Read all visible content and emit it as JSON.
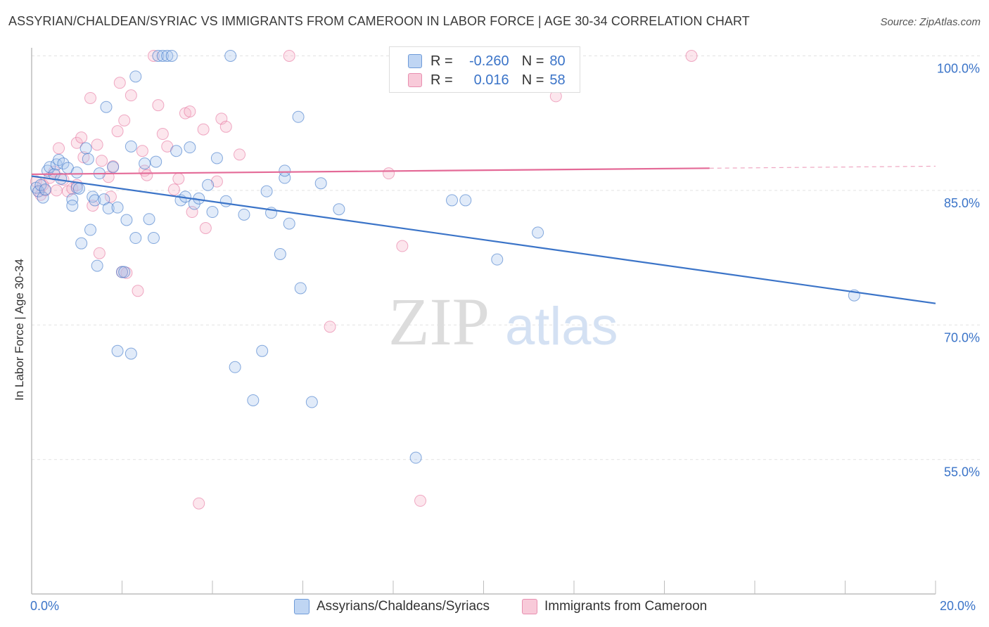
{
  "header": {
    "title": "ASSYRIAN/CHALDEAN/SYRIAC VS IMMIGRANTS FROM CAMEROON IN LABOR FORCE | AGE 30-34 CORRELATION CHART",
    "source": "Source: ZipAtlas.com"
  },
  "legend": {
    "r_label": "R =",
    "n_label": "N =",
    "rows": [
      {
        "r": "-0.260",
        "n": "80"
      },
      {
        "r": "0.016",
        "n": "58"
      }
    ]
  },
  "watermark": {
    "zip": "ZIP",
    "atlas": "atlas"
  },
  "chart_data": {
    "type": "scatter",
    "title": "ASSYRIAN/CHALDEAN/SYRIAC VS IMMIGRANTS FROM CAMEROON IN LABOR FORCE | AGE 30-34 CORRELATION CHART",
    "xlabel": "",
    "ylabel": "In Labor Force | Age 30-34",
    "xlim": [
      0,
      20
    ],
    "ylim": [
      40,
      101
    ],
    "x_tick_labels": [
      "0.0%",
      "20.0%"
    ],
    "y_ticks": [
      55,
      70,
      85,
      100
    ],
    "y_tick_labels": [
      "55.0%",
      "70.0%",
      "85.0%",
      "100.0%"
    ],
    "grid": true,
    "legend_position": "top-center",
    "colors": {
      "blue": "#3b74c8",
      "pink": "#e46a97",
      "blue_fill": "#a9c6ee",
      "pink_fill": "#f5b8cc"
    },
    "series": [
      {
        "name": "Assyrians/Chaldeans/Syriacs",
        "r": -0.26,
        "n": 80,
        "trend": {
          "x": [
            0,
            20
          ],
          "y": [
            86.6,
            72.4
          ]
        },
        "points": [
          [
            0.1,
            85.3
          ],
          [
            0.15,
            84.9
          ],
          [
            0.2,
            85.6
          ],
          [
            0.25,
            84.2
          ],
          [
            0.3,
            85.1
          ],
          [
            0.35,
            87.2
          ],
          [
            0.4,
            87.6
          ],
          [
            0.5,
            86.8
          ],
          [
            0.55,
            87.9
          ],
          [
            0.6,
            88.4
          ],
          [
            0.7,
            88.0
          ],
          [
            0.8,
            87.5
          ],
          [
            0.9,
            84.0
          ],
          [
            0.9,
            83.3
          ],
          [
            1.0,
            85.3
          ],
          [
            1.0,
            87.0
          ],
          [
            1.1,
            79.1
          ],
          [
            1.2,
            89.7
          ],
          [
            1.25,
            88.5
          ],
          [
            1.3,
            80.6
          ],
          [
            1.35,
            84.3
          ],
          [
            1.4,
            83.9
          ],
          [
            1.45,
            76.6
          ],
          [
            1.5,
            86.9
          ],
          [
            1.6,
            84.0
          ],
          [
            1.65,
            94.3
          ],
          [
            1.7,
            83.0
          ],
          [
            1.8,
            87.6
          ],
          [
            1.9,
            67.1
          ],
          [
            1.9,
            83.1
          ],
          [
            2.0,
            75.9
          ],
          [
            2.05,
            75.9
          ],
          [
            2.1,
            81.7
          ],
          [
            2.2,
            89.9
          ],
          [
            2.2,
            66.8
          ],
          [
            2.3,
            97.7
          ],
          [
            2.3,
            79.7
          ],
          [
            2.5,
            88.0
          ],
          [
            2.6,
            81.8
          ],
          [
            2.7,
            79.7
          ],
          [
            2.75,
            88.2
          ],
          [
            2.8,
            100.0
          ],
          [
            2.9,
            100.0
          ],
          [
            3.0,
            100.0
          ],
          [
            3.1,
            100.0
          ],
          [
            3.2,
            89.4
          ],
          [
            3.3,
            83.9
          ],
          [
            3.4,
            84.3
          ],
          [
            3.5,
            89.8
          ],
          [
            3.6,
            83.5
          ],
          [
            3.7,
            84.1
          ],
          [
            3.9,
            85.6
          ],
          [
            4.0,
            82.6
          ],
          [
            4.1,
            88.6
          ],
          [
            4.3,
            83.8
          ],
          [
            4.4,
            100.0
          ],
          [
            4.5,
            65.3
          ],
          [
            4.7,
            82.3
          ],
          [
            4.9,
            61.6
          ],
          [
            5.1,
            67.1
          ],
          [
            5.2,
            84.9
          ],
          [
            5.3,
            82.5
          ],
          [
            5.5,
            77.9
          ],
          [
            5.6,
            86.4
          ],
          [
            5.6,
            87.2
          ],
          [
            5.7,
            81.3
          ],
          [
            5.9,
            93.2
          ],
          [
            5.95,
            74.1
          ],
          [
            6.2,
            61.4
          ],
          [
            6.4,
            85.8
          ],
          [
            6.8,
            82.9
          ],
          [
            8.5,
            55.2
          ],
          [
            9.3,
            83.9
          ],
          [
            9.6,
            83.9
          ],
          [
            10.3,
            77.3
          ],
          [
            11.0,
            98.0
          ],
          [
            11.2,
            80.3
          ],
          [
            18.2,
            73.3
          ],
          [
            1.05,
            85.2
          ],
          [
            0.65,
            86.3
          ]
        ]
      },
      {
        "name": "Immigrants from Cameroon",
        "r": 0.016,
        "n": 58,
        "trend": {
          "x": [
            0,
            20
          ],
          "y": [
            86.8,
            87.7
          ]
        },
        "trend_solid_until_x": 15.0,
        "points": [
          [
            0.1,
            86.0
          ],
          [
            0.15,
            84.9
          ],
          [
            0.2,
            84.5
          ],
          [
            0.25,
            85.6
          ],
          [
            0.3,
            85.0
          ],
          [
            0.4,
            86.4
          ],
          [
            0.5,
            87.1
          ],
          [
            0.55,
            85.0
          ],
          [
            0.6,
            89.7
          ],
          [
            0.7,
            86.2
          ],
          [
            0.8,
            84.9
          ],
          [
            0.9,
            85.2
          ],
          [
            1.0,
            90.3
          ],
          [
            1.1,
            90.9
          ],
          [
            1.15,
            88.7
          ],
          [
            1.3,
            95.3
          ],
          [
            1.35,
            83.3
          ],
          [
            1.45,
            90.1
          ],
          [
            1.5,
            78.0
          ],
          [
            1.55,
            88.3
          ],
          [
            1.7,
            86.5
          ],
          [
            1.75,
            84.3
          ],
          [
            1.8,
            87.7
          ],
          [
            1.9,
            91.6
          ],
          [
            1.95,
            97.0
          ],
          [
            2.0,
            75.9
          ],
          [
            2.05,
            92.8
          ],
          [
            2.1,
            75.8
          ],
          [
            2.2,
            95.6
          ],
          [
            2.35,
            73.8
          ],
          [
            2.45,
            89.4
          ],
          [
            2.5,
            87.2
          ],
          [
            2.55,
            86.7
          ],
          [
            2.7,
            100.0
          ],
          [
            2.8,
            94.5
          ],
          [
            2.9,
            91.3
          ],
          [
            3.0,
            89.9
          ],
          [
            3.15,
            85.1
          ],
          [
            3.25,
            86.3
          ],
          [
            3.4,
            93.6
          ],
          [
            3.5,
            93.8
          ],
          [
            3.55,
            82.6
          ],
          [
            3.8,
            91.8
          ],
          [
            3.85,
            80.8
          ],
          [
            4.1,
            86.0
          ],
          [
            4.2,
            93.0
          ],
          [
            4.3,
            92.1
          ],
          [
            4.6,
            89.0
          ],
          [
            5.7,
            100.0
          ],
          [
            6.6,
            69.8
          ],
          [
            7.9,
            86.9
          ],
          [
            8.2,
            78.8
          ],
          [
            8.6,
            50.4
          ],
          [
            8.7,
            100.0
          ],
          [
            11.6,
            95.5
          ],
          [
            14.6,
            100.0
          ],
          [
            3.7,
            50.1
          ],
          [
            1.0,
            85.6
          ]
        ]
      }
    ]
  },
  "bottom_legend": {
    "series1": "Assyrians/Chaldeans/Syriacs",
    "series2": "Immigrants from Cameroon"
  }
}
